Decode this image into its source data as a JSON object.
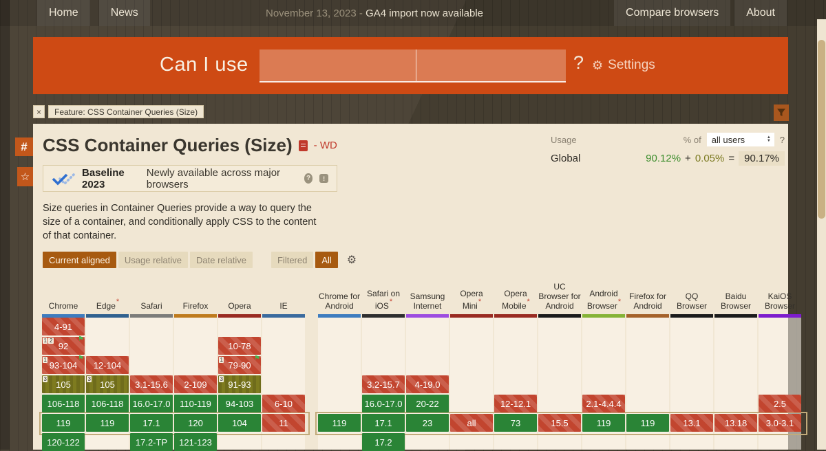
{
  "topnav": {
    "left": [
      "Home",
      "News"
    ],
    "announcement": {
      "date": "November 13, 2023",
      "separator": " - ",
      "text": "GA4 import now available"
    },
    "right": [
      "Compare browsers",
      "About"
    ]
  },
  "hero": {
    "brand": "Can I use",
    "search_value_left": "",
    "search_value_right": "",
    "question_mark": "?",
    "settings_label": "Settings"
  },
  "feature_tag": {
    "close": "×",
    "label": "Feature: CSS Container Queries (Size)"
  },
  "side_buttons": {
    "hash": "#",
    "star": "☆"
  },
  "feature": {
    "title": "CSS Container Queries (Size)",
    "spec_status": "- WD",
    "baseline": {
      "badge": "Baseline 2023",
      "description": "Newly available across major browsers",
      "help_icon": "?",
      "feedback_icon": "!"
    },
    "description": "Size queries in Container Queries provide a way to query the size of a container, and conditionally apply CSS to the content of that container."
  },
  "usage": {
    "label": "Usage",
    "percent_of": "% of",
    "select_value": "all users",
    "help": "?",
    "region": "Global",
    "base": "90.12%",
    "plus": "+",
    "partial": "0.05%",
    "equals": "=",
    "total": "90.17%"
  },
  "toolbar": {
    "view_buttons": [
      {
        "label": "Current aligned",
        "active": true
      },
      {
        "label": "Usage relative",
        "active": false
      },
      {
        "label": "Date relative",
        "active": false
      }
    ],
    "filter_buttons": [
      {
        "label": "Filtered",
        "active": false
      },
      {
        "label": "All",
        "active": true
      }
    ],
    "gear_icon": "⚙"
  },
  "support_table": {
    "rows": 7,
    "current_row": 6,
    "legend_colors": {
      "supported": "#2a8436",
      "unsupported": "#c2452f",
      "partial": "#7e7b1f"
    },
    "desktop": [
      {
        "name": "Chrome",
        "asterisk": false,
        "underline_color": "#3e7cbf",
        "cells": [
          {
            "row": 1,
            "label": "4-91",
            "support": "n"
          },
          {
            "row": 2,
            "label": "92",
            "support": "n",
            "notes": [
              "1",
              "2"
            ],
            "flag": true
          },
          {
            "row": 3,
            "label": "93-104",
            "support": "n",
            "notes": [
              "1"
            ],
            "flag": true
          },
          {
            "row": 4,
            "label": "105",
            "support": "a",
            "notes": [
              "3"
            ]
          },
          {
            "row": 5,
            "label": "106-118",
            "support": "y"
          },
          {
            "row": 6,
            "label": "119",
            "support": "y"
          },
          {
            "row": 7,
            "label": "120-122",
            "support": "y"
          }
        ]
      },
      {
        "name": "Edge",
        "asterisk": true,
        "underline_color": "#30618f",
        "cells": [
          {
            "row": 3,
            "label": "12-104",
            "support": "n"
          },
          {
            "row": 4,
            "label": "105",
            "support": "a",
            "notes": [
              "3"
            ]
          },
          {
            "row": 5,
            "label": "106-118",
            "support": "y"
          },
          {
            "row": 6,
            "label": "119",
            "support": "y"
          }
        ]
      },
      {
        "name": "Safari",
        "asterisk": false,
        "underline_color": "#7c7c7a",
        "cells": [
          {
            "row": 4,
            "label": "3.1-15.6",
            "support": "n"
          },
          {
            "row": 5,
            "label": "16.0-17.0",
            "support": "y"
          },
          {
            "row": 6,
            "label": "17.1",
            "support": "y"
          },
          {
            "row": 7,
            "label": "17.2-TP",
            "support": "y"
          }
        ]
      },
      {
        "name": "Firefox",
        "asterisk": false,
        "underline_color": "#bf7b1d",
        "cells": [
          {
            "row": 4,
            "label": "2-109",
            "support": "n"
          },
          {
            "row": 5,
            "label": "110-119",
            "support": "y"
          },
          {
            "row": 6,
            "label": "120",
            "support": "y"
          },
          {
            "row": 7,
            "label": "121-123",
            "support": "y"
          }
        ]
      },
      {
        "name": "Opera",
        "asterisk": false,
        "underline_color": "#992a21",
        "cells": [
          {
            "row": 2,
            "label": "10-78",
            "support": "n"
          },
          {
            "row": 3,
            "label": "79-90",
            "support": "n",
            "notes": [
              "1"
            ],
            "flag": true
          },
          {
            "row": 4,
            "label": "91-93",
            "support": "a",
            "notes": [
              "3"
            ]
          },
          {
            "row": 5,
            "label": "94-103",
            "support": "y"
          },
          {
            "row": 6,
            "label": "104",
            "support": "y"
          }
        ]
      },
      {
        "name": "IE",
        "asterisk": false,
        "underline_color": "#3a6a9e",
        "cells": [
          {
            "row": 5,
            "label": "6-10",
            "support": "n"
          },
          {
            "row": 6,
            "label": "11",
            "support": "n"
          }
        ]
      }
    ],
    "mobile": [
      {
        "name": "Chrome for Android",
        "asterisk": false,
        "underline_color": "#3e7cbf",
        "cells": [
          {
            "row": 6,
            "label": "119",
            "support": "y"
          }
        ]
      },
      {
        "name": "Safari on iOS",
        "asterisk": true,
        "underline_color": "#2e2e2e",
        "cells": [
          {
            "row": 4,
            "label": "3.2-15.7",
            "support": "n"
          },
          {
            "row": 5,
            "label": "16.0-17.0",
            "support": "y"
          },
          {
            "row": 6,
            "label": "17.1",
            "support": "y"
          },
          {
            "row": 7,
            "label": "17.2",
            "support": "y"
          }
        ]
      },
      {
        "name": "Samsung Internet",
        "asterisk": false,
        "underline_color": "#9d4ce0",
        "cells": [
          {
            "row": 4,
            "label": "4-19.0",
            "support": "n"
          },
          {
            "row": 5,
            "label": "20-22",
            "support": "y"
          },
          {
            "row": 6,
            "label": "23",
            "support": "y"
          }
        ]
      },
      {
        "name": "Opera Mini",
        "asterisk": true,
        "underline_color": "#992a21",
        "cells": [
          {
            "row": 6,
            "label": "all",
            "support": "n"
          }
        ]
      },
      {
        "name": "Opera Mobile",
        "asterisk": true,
        "underline_color": "#992a21",
        "cells": [
          {
            "row": 5,
            "label": "12-12.1",
            "support": "n"
          },
          {
            "row": 6,
            "label": "73",
            "support": "y"
          }
        ]
      },
      {
        "name": "UC Browser for Android",
        "asterisk": false,
        "underline_color": "#1b1b1b",
        "cells": [
          {
            "row": 6,
            "label": "15.5",
            "support": "n"
          }
        ]
      },
      {
        "name": "Android Browser",
        "asterisk": true,
        "underline_color": "#85b336",
        "cells": [
          {
            "row": 5,
            "label": "2.1-4.4.4",
            "support": "n"
          },
          {
            "row": 6,
            "label": "119",
            "support": "y"
          }
        ]
      },
      {
        "name": "Firefox for Android",
        "asterisk": false,
        "underline_color": "#a5622a",
        "cells": [
          {
            "row": 6,
            "label": "119",
            "support": "y"
          }
        ]
      },
      {
        "name": "QQ Browser",
        "asterisk": false,
        "underline_color": "#1b1b1b",
        "cells": [
          {
            "row": 6,
            "label": "13.1",
            "support": "n"
          }
        ]
      },
      {
        "name": "Baidu Browser",
        "asterisk": false,
        "underline_color": "#1b1b1b",
        "cells": [
          {
            "row": 6,
            "label": "13.18",
            "support": "n"
          }
        ]
      },
      {
        "name": "KaiOS Browser",
        "asterisk": false,
        "underline_color": "#7d1ccd",
        "cells": [
          {
            "row": 5,
            "label": "2.5",
            "support": "n"
          },
          {
            "row": 6,
            "label": "3.0-3.1",
            "support": "n"
          }
        ]
      }
    ]
  }
}
